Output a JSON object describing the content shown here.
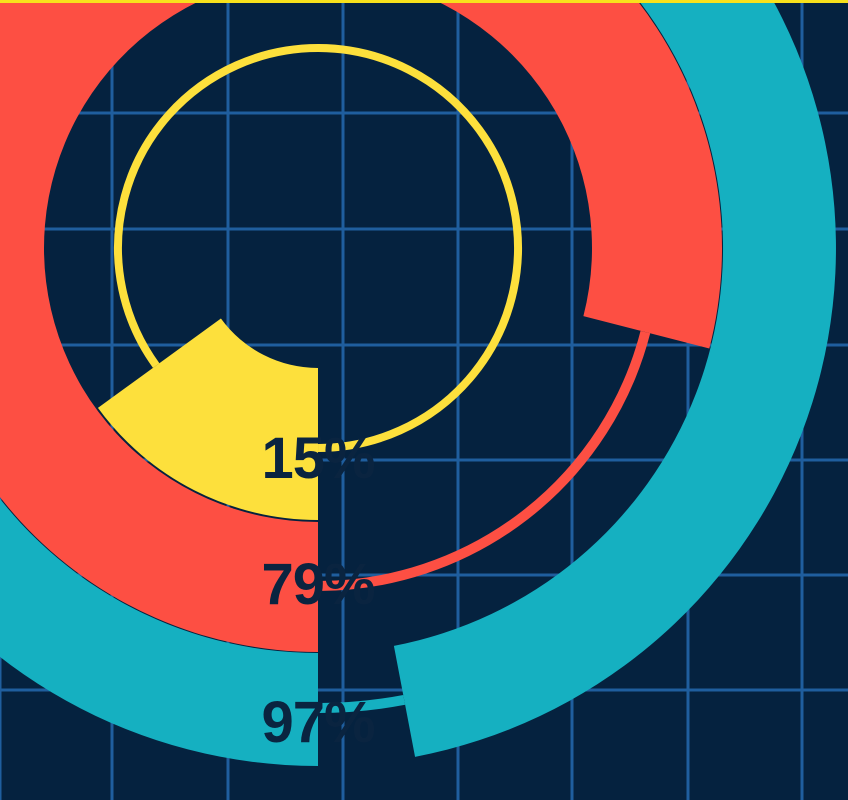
{
  "colors": {
    "background": "#05223f",
    "grid_line": "#1f5e9e",
    "top_border": "#f8e11c",
    "label_text": "#0a2440"
  },
  "chart_data": {
    "type": "radial-bar",
    "title": "",
    "value_unit": "%",
    "grid": true,
    "series": [
      {
        "label": "15%",
        "value": 15,
        "color": "#fde03c"
      },
      {
        "label": "79%",
        "value": 79,
        "color": "#fd4f43"
      },
      {
        "label": "97%",
        "value": 97,
        "color": "#15b0c1"
      }
    ]
  }
}
